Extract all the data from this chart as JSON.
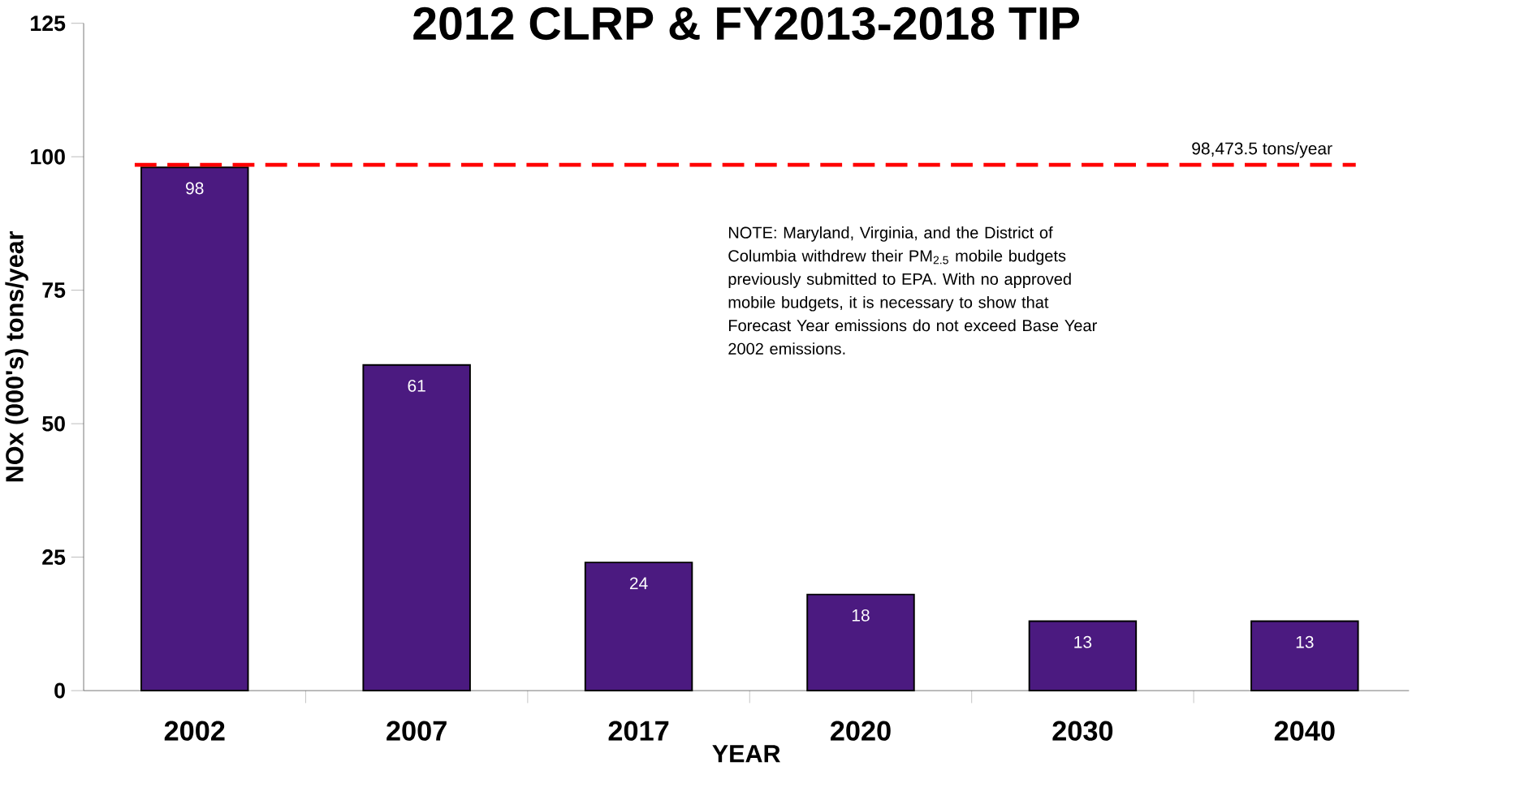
{
  "chart_data": {
    "type": "bar",
    "title": "2012 CLRP & FY2013-2018 TIP",
    "xlabel": "YEAR",
    "ylabel": "NOx  (000's) tons/year",
    "categories": [
      "2002",
      "2007",
      "2017",
      "2020",
      "2030",
      "2040"
    ],
    "values": [
      98,
      61,
      24,
      18,
      13,
      13
    ],
    "color": "#4b1a80",
    "ylim": [
      0,
      125
    ],
    "yticks": [
      0,
      25,
      50,
      75,
      100,
      125
    ],
    "data_labels": true,
    "ref_lines": [
      {
        "axis": "y",
        "value": 98.4735,
        "label": "98,473.5 tons/year",
        "color": "#ff0000",
        "line_style": "dashed"
      }
    ],
    "annotations": [
      "NOTE:  Maryland, Virginia, and the District of Columbia  withdrew their  PM$_{2.5}$ mobile budgets previously submitted to EPA.  With no approved mobile budgets,  it is necessary to show that Forecast Year emissions do not exceed Base Year 2002 emissions."
    ]
  }
}
